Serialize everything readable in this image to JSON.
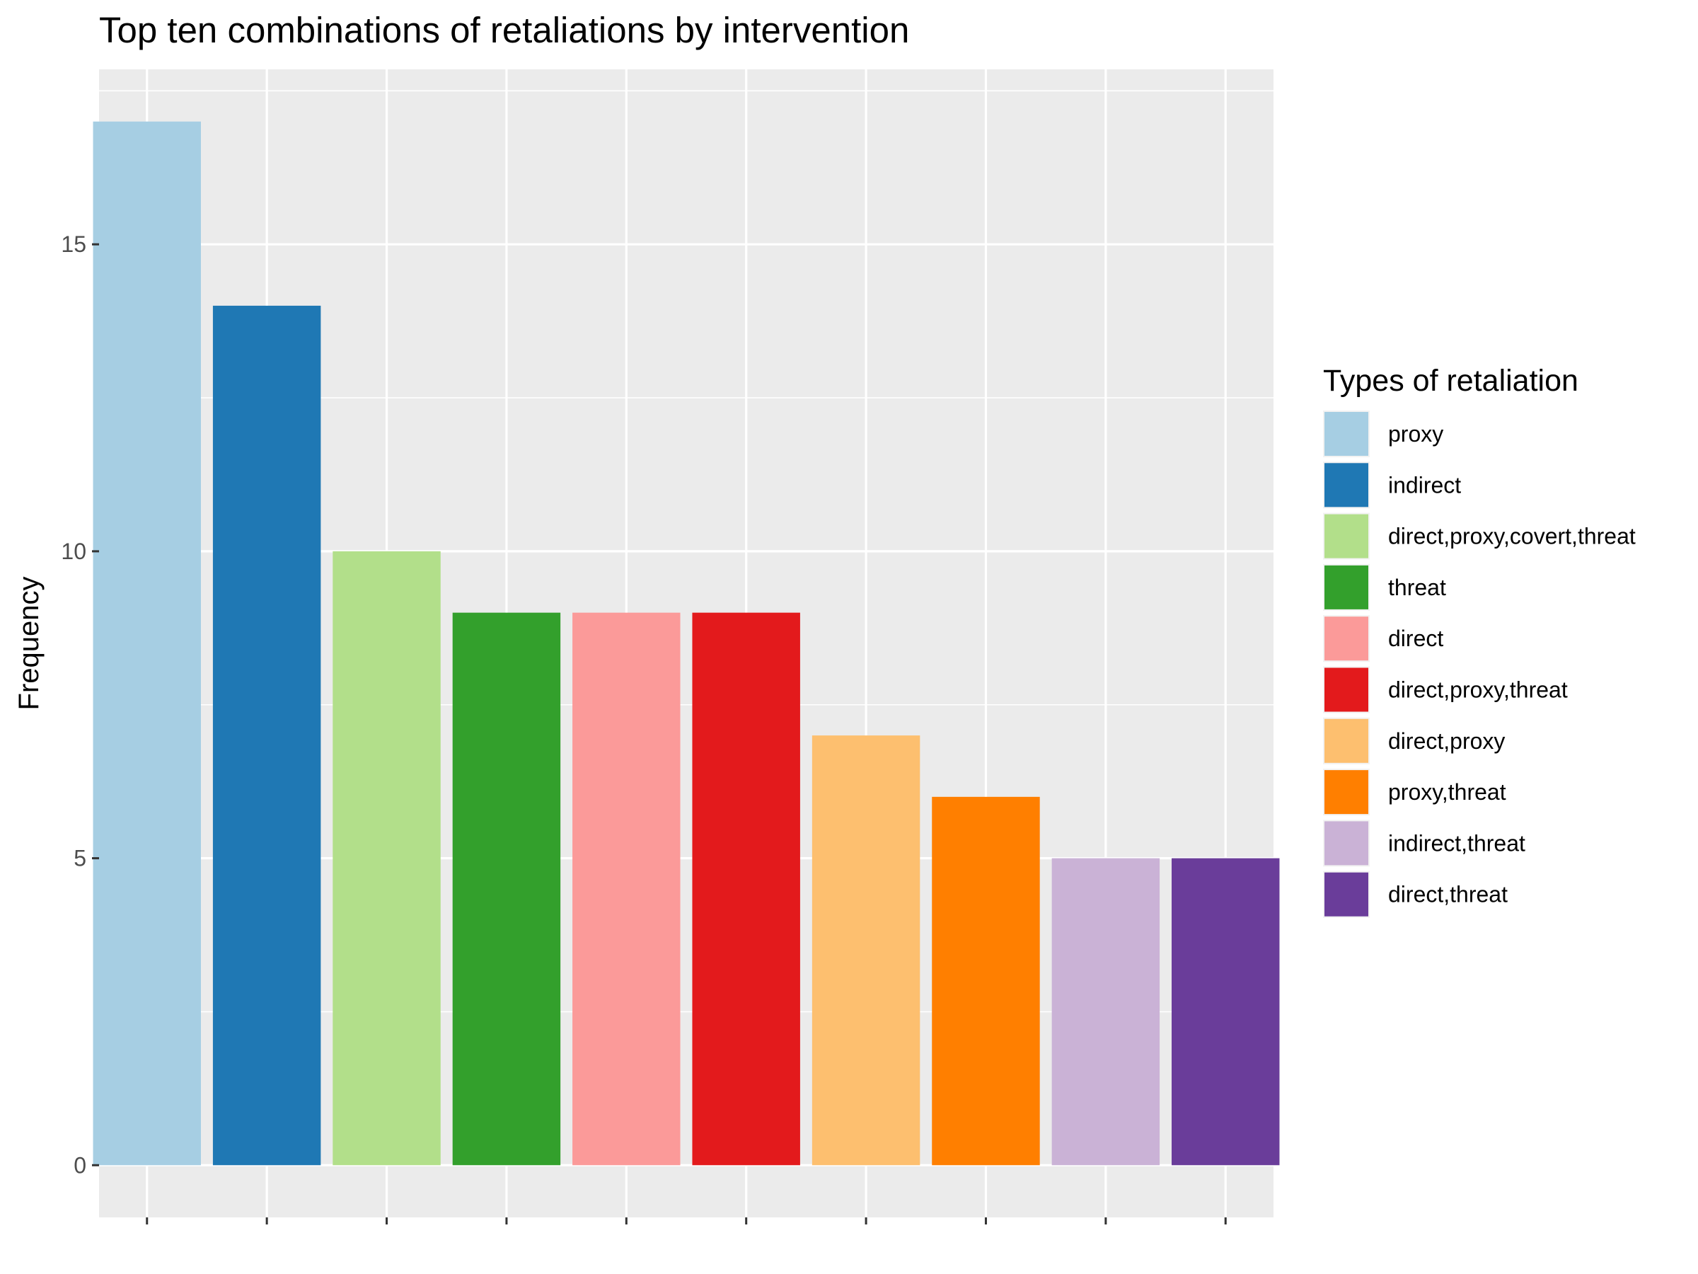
{
  "chart_data": {
    "type": "bar",
    "title": "Top ten combinations of retaliations by intervention",
    "xlabel": "",
    "ylabel": "Frequency",
    "ylim": [
      -0.85,
      17.85
    ],
    "yticks": [
      0,
      5,
      10,
      15
    ],
    "grid": true,
    "legend": {
      "title": "Types of retaliation",
      "placement": "right"
    },
    "categories": [
      "proxy",
      "indirect",
      "direct,proxy,covert,threat",
      "threat",
      "direct",
      "direct,proxy,threat",
      "direct,proxy",
      "proxy,threat",
      "indirect,threat",
      "direct,threat"
    ],
    "values": [
      17,
      14,
      10,
      9,
      9,
      9,
      7,
      6,
      5,
      5
    ],
    "colors": [
      "#A6CEE3",
      "#1F78B4",
      "#B2DF8A",
      "#33A02C",
      "#FB9A99",
      "#E31A1C",
      "#FDBF6F",
      "#FF7F00",
      "#CAB2D6",
      "#6A3D9A"
    ],
    "panel_background": "#EBEBEB",
    "grid_color": "#FFFFFF"
  }
}
